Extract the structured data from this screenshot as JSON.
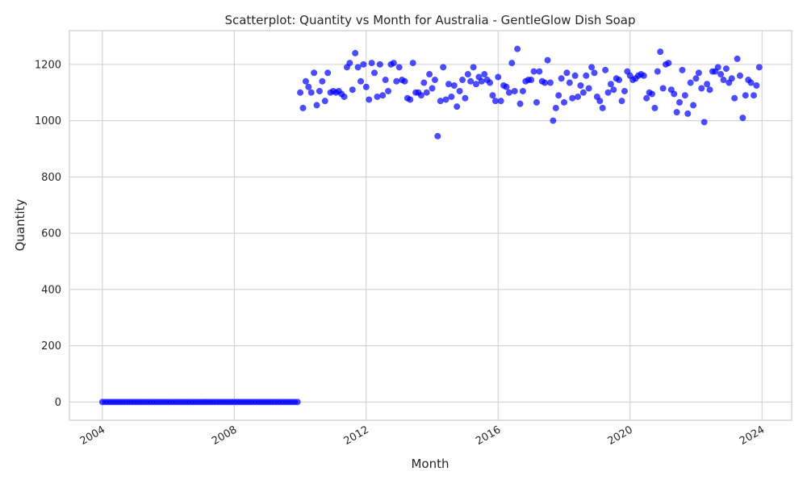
{
  "chart_data": {
    "type": "scatter",
    "title": "Scatterplot: Quantity vs Month for Australia - GentleGlow Dish Soap",
    "xlabel": "Month",
    "ylabel": "Quantity",
    "xlim": [
      2003.0,
      2024.9
    ],
    "ylim": [
      -65,
      1320
    ],
    "x_ticks": [
      2004,
      2008,
      2012,
      2016,
      2020,
      2024
    ],
    "x_tick_labels": [
      "2004",
      "2008",
      "2012",
      "2016",
      "2020",
      "2024"
    ],
    "y_ticks": [
      0,
      200,
      400,
      600,
      800,
      1000,
      1200
    ],
    "y_tick_labels": [
      "0",
      "200",
      "400",
      "600",
      "800",
      "1000",
      "1200"
    ],
    "grid": true,
    "marker_color": "#0000ff",
    "series": [
      {
        "name": "Quantity",
        "start_year": 2004,
        "start_month": 1,
        "values": [
          0,
          0,
          0,
          0,
          0,
          0,
          0,
          0,
          0,
          0,
          0,
          0,
          0,
          0,
          0,
          0,
          0,
          0,
          0,
          0,
          0,
          0,
          0,
          0,
          0,
          0,
          0,
          0,
          0,
          0,
          0,
          0,
          0,
          0,
          0,
          0,
          0,
          0,
          0,
          0,
          0,
          0,
          0,
          0,
          0,
          0,
          0,
          0,
          0,
          0,
          0,
          0,
          0,
          0,
          0,
          0,
          0,
          0,
          0,
          0,
          0,
          0,
          0,
          0,
          0,
          0,
          0,
          0,
          0,
          0,
          0,
          0,
          1100,
          1045,
          1140,
          1120,
          1100,
          1170,
          1055,
          1105,
          1140,
          1070,
          1170,
          1100,
          1105,
          1100,
          1105,
          1095,
          1085,
          1190,
          1205,
          1110,
          1240,
          1190,
          1140,
          1200,
          1120,
          1075,
          1205,
          1170,
          1085,
          1200,
          1090,
          1145,
          1105,
          1200,
          1205,
          1140,
          1190,
          1145,
          1140,
          1080,
          1075,
          1205,
          1100,
          1100,
          1090,
          1135,
          1100,
          1165,
          1115,
          1145,
          945,
          1070,
          1190,
          1075,
          1130,
          1085,
          1125,
          1050,
          1105,
          1145,
          1080,
          1165,
          1140,
          1190,
          1130,
          1155,
          1140,
          1165,
          1145,
          1135,
          1090,
          1070,
          1155,
          1070,
          1125,
          1120,
          1100,
          1205,
          1105,
          1255,
          1060,
          1105,
          1140,
          1145,
          1145,
          1175,
          1065,
          1175,
          1140,
          1135,
          1215,
          1135,
          1000,
          1045,
          1090,
          1150,
          1065,
          1170,
          1135,
          1080,
          1160,
          1085,
          1125,
          1100,
          1160,
          1115,
          1190,
          1170,
          1085,
          1070,
          1045,
          1180,
          1100,
          1130,
          1110,
          1150,
          1145,
          1070,
          1105,
          1175,
          1160,
          1145,
          1150,
          1160,
          1165,
          1160,
          1080,
          1100,
          1095,
          1045,
          1175,
          1245,
          1115,
          1200,
          1205,
          1110,
          1095,
          1030,
          1065,
          1180,
          1090,
          1025,
          1135,
          1055,
          1150,
          1170,
          1115,
          995,
          1130,
          1110,
          1175,
          1175,
          1190,
          1165,
          1145,
          1185,
          1135,
          1150,
          1080,
          1220,
          1160,
          1010,
          1090,
          1145,
          1135,
          1090,
          1125,
          1190
        ]
      }
    ]
  }
}
